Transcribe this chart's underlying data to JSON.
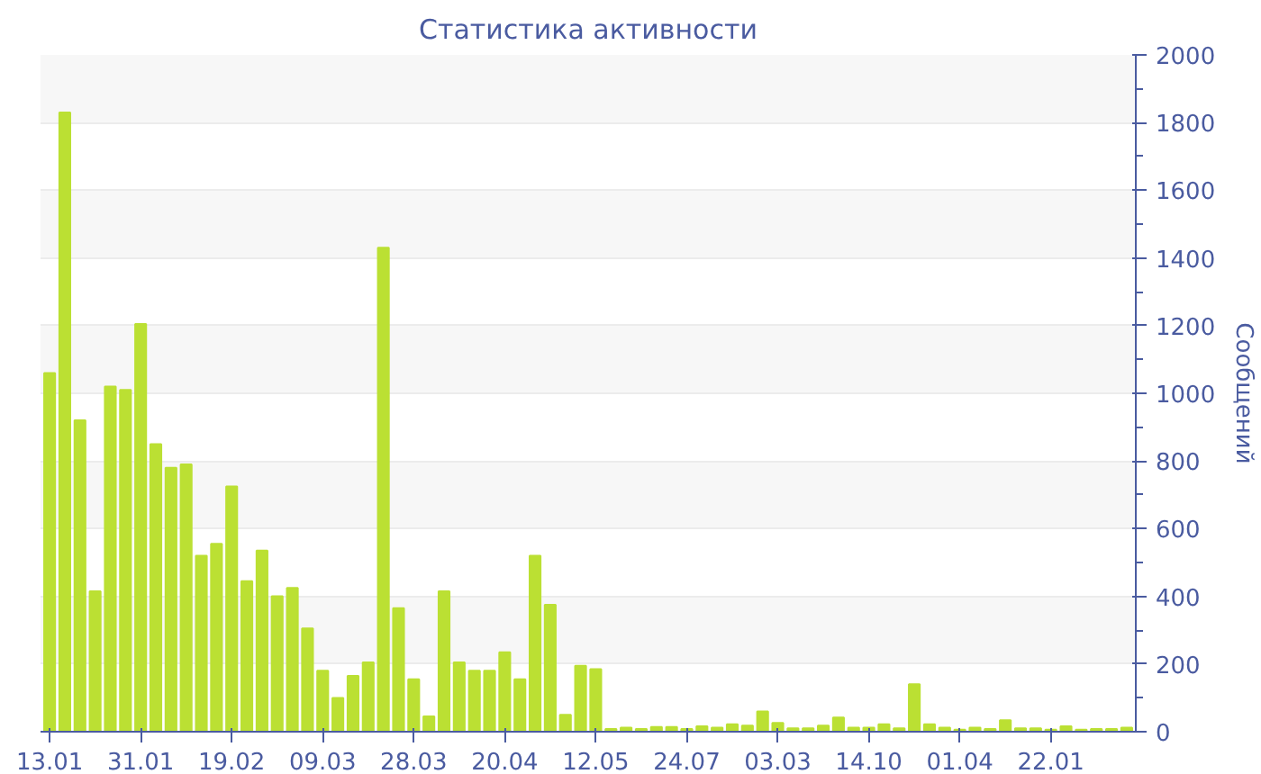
{
  "chart_data": {
    "type": "bar",
    "title": "Статистика активности",
    "ylabel": "Сообщений",
    "categories": [
      "13.01",
      null,
      null,
      null,
      null,
      null,
      "31.01",
      null,
      null,
      null,
      null,
      null,
      "19.02",
      null,
      null,
      null,
      null,
      null,
      "09.03",
      null,
      null,
      null,
      null,
      null,
      "28.03",
      null,
      null,
      null,
      null,
      null,
      "20.04",
      null,
      null,
      null,
      null,
      null,
      "12.05",
      null,
      null,
      null,
      null,
      null,
      "24.07",
      null,
      null,
      null,
      null,
      null,
      "03.03",
      null,
      null,
      null,
      null,
      null,
      "14.10",
      null,
      null,
      null,
      null,
      null,
      "01.04",
      null,
      null,
      null,
      null,
      null,
      "22.01",
      null,
      null,
      null,
      null,
      null
    ],
    "values": [
      1060,
      1830,
      920,
      415,
      1020,
      1010,
      1205,
      850,
      780,
      790,
      520,
      555,
      725,
      445,
      535,
      400,
      425,
      305,
      180,
      100,
      165,
      205,
      1430,
      365,
      155,
      45,
      415,
      205,
      180,
      180,
      235,
      155,
      520,
      375,
      50,
      195,
      185,
      8,
      12,
      8,
      14,
      14,
      8,
      16,
      12,
      22,
      18,
      60,
      26,
      10,
      10,
      18,
      42,
      12,
      12,
      22,
      10,
      140,
      22,
      12,
      6,
      12,
      8,
      34,
      10,
      10,
      6,
      16,
      6,
      8,
      8,
      12
    ],
    "color": "#bbe033",
    "ylim": [
      0,
      2000
    ],
    "yticks": [
      0,
      200,
      400,
      600,
      800,
      1000,
      1200,
      1400,
      1600,
      1800,
      2000
    ],
    "grid": "y"
  }
}
